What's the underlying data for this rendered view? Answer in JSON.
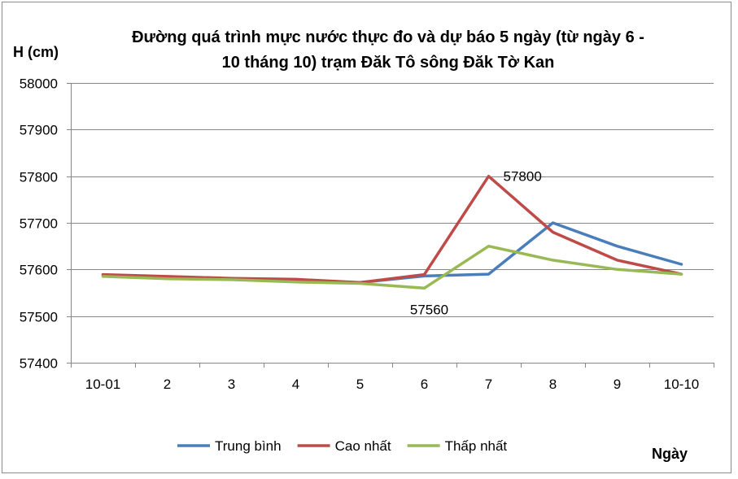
{
  "chart_data": {
    "type": "line",
    "title_lines": [
      "Đường quá trình mực nước thực đo và dự báo 5 ngày (từ ngày 6 -",
      "10 tháng 10) trạm Đăk Tô sông Đăk Tờ Kan"
    ],
    "ylabel": "H (cm)",
    "xlabel": "Ngày",
    "ylim": [
      57400,
      58000
    ],
    "yticks": [
      "57400",
      "57500",
      "57600",
      "57700",
      "57800",
      "57900",
      "58000"
    ],
    "categories": [
      "10-01",
      "2",
      "3",
      "4",
      "5",
      "6",
      "7",
      "8",
      "9",
      "10-10"
    ],
    "grid": true,
    "legend_position": "bottom",
    "series": [
      {
        "name": "Trung bình",
        "color": "#4a7ebb",
        "values": [
          57587,
          57583,
          57580,
          57576,
          57572,
          57586,
          57590,
          57700,
          57650,
          57611
        ]
      },
      {
        "name": "Cao nhất",
        "color": "#be4b48",
        "values": [
          57589,
          57585,
          57581,
          57579,
          57572,
          57589,
          57800,
          57680,
          57620,
          57590
        ]
      },
      {
        "name": "Thấp nhất",
        "color": "#98b954",
        "values": [
          57585,
          57580,
          57578,
          57573,
          57570,
          57560,
          57650,
          57620,
          57600,
          57590
        ]
      }
    ],
    "annotations": [
      {
        "text": "57800",
        "series": 1,
        "index": 6
      },
      {
        "text": "57560",
        "series": 2,
        "index": 5
      }
    ]
  }
}
